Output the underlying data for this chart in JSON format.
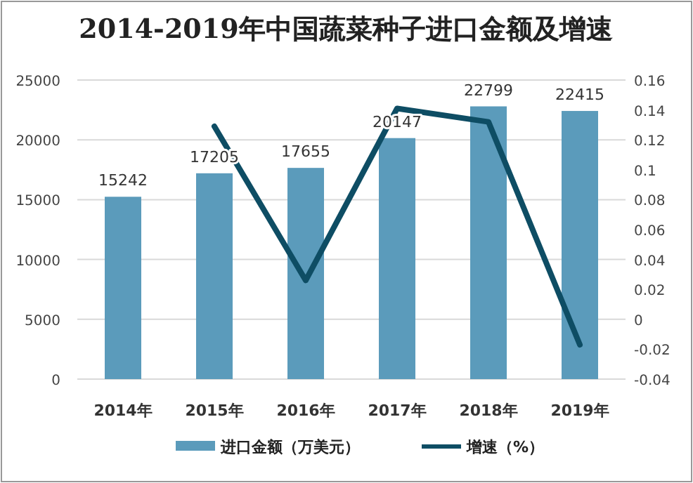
{
  "chart_data": {
    "type": "bar",
    "title": "2014-2019年中国蔬菜种子进口金额及增速",
    "categories": [
      "2014年",
      "2015年",
      "2016年",
      "2017年",
      "2018年",
      "2019年"
    ],
    "series": [
      {
        "name": "进口金额（万美元）",
        "color": "#5b9bbb",
        "values": [
          15242,
          17205,
          17655,
          20147,
          22799,
          22415
        ],
        "value_labels": [
          "15242",
          "17205",
          "17655",
          "20147",
          "22799",
          "22415"
        ]
      },
      {
        "name": "增速（%）",
        "type": "line",
        "axis": "y2",
        "color": "#0e4d64",
        "values": [
          null,
          0.129,
          0.026,
          0.141,
          0.132,
          -0.017
        ]
      }
    ],
    "ylim": [
      0,
      25000
    ],
    "yticks": [
      0,
      5000,
      10000,
      15000,
      20000,
      25000
    ],
    "y2lim": [
      -0.04,
      0.16
    ],
    "y2ticks": [
      {
        "value": -0.04,
        "label": "-0.04"
      },
      {
        "value": -0.02,
        "label": "-0.02"
      },
      {
        "value": 0,
        "label": "0"
      },
      {
        "value": 0.02,
        "label": "0.02"
      },
      {
        "value": 0.04,
        "label": "0.04"
      },
      {
        "value": 0.06,
        "label": "0.06"
      },
      {
        "value": 0.08,
        "label": "0.08"
      },
      {
        "value": 0.1,
        "label": "0.1"
      },
      {
        "value": 0.12,
        "label": "0.12"
      },
      {
        "value": 0.14,
        "label": "0.14"
      },
      {
        "value": 0.16,
        "label": "0.16"
      }
    ],
    "grid": "y",
    "legend": "bottom",
    "line_style": "solid",
    "marker": "none"
  }
}
